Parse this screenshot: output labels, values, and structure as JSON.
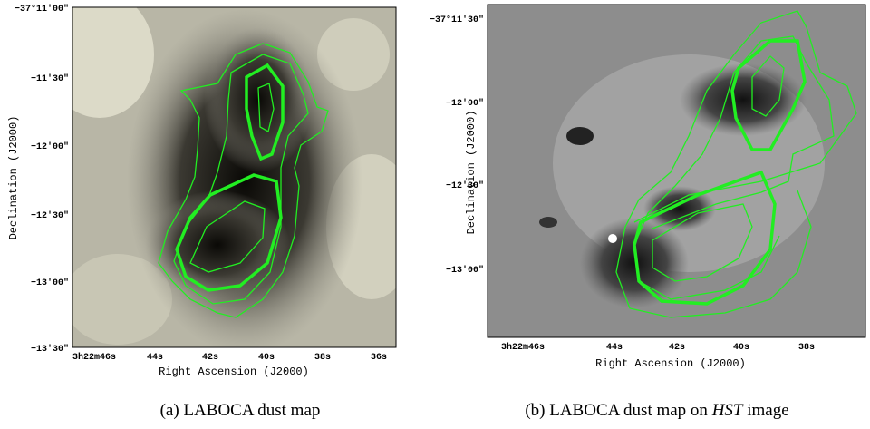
{
  "panels": [
    {
      "label": "(a)",
      "caption": [
        "LABOCA dust map"
      ],
      "x_label": "Right Ascension (J2000)",
      "y_label": "Declination (J2000)",
      "x_ticks": [
        "3h22m46s",
        "44s",
        "42s",
        "40s",
        "38s",
        "36s"
      ],
      "y_ticks": [
        "−37°11′00″",
        "−11′30″",
        "−12′00″",
        "−12′30″",
        "−13′00″",
        "−13′30″"
      ]
    },
    {
      "label": "(b)",
      "caption": [
        "LABOCA dust map on",
        "HST",
        "image"
      ],
      "x_label": "Right Ascension (J2000)",
      "y_label": "Declination (J2000)",
      "x_ticks": [
        "3h22m46s",
        "44s",
        "42s",
        "40s",
        "38s"
      ],
      "y_ticks": [
        "−37°11′30″",
        "−12′00″",
        "−12′30″",
        "−13′00″"
      ]
    }
  ]
}
